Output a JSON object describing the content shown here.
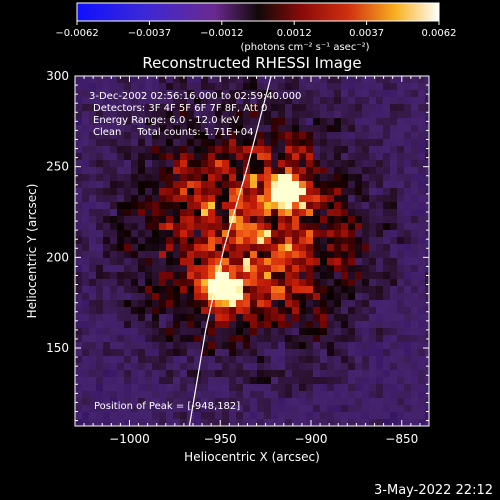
{
  "colorbar": {
    "ticks": [
      "−0.0062",
      "−0.0037",
      "−0.0012",
      "0.0012",
      "0.0037",
      "0.0062"
    ],
    "unit_label": "(photons cm⁻² s⁻¹ asec⁻²)",
    "range": [
      -0.0062,
      0.0062
    ]
  },
  "chart_data": {
    "type": "heatmap",
    "title": "Reconstructed RHESSI Image",
    "xlabel": "Heliocentric X (arcsec)",
    "ylabel": "Heliocentric Y (arcsec)",
    "xlim": [
      -1030,
      -835
    ],
    "ylim": [
      107,
      300
    ],
    "x_ticks": [
      -1000,
      -950,
      -900,
      -850
    ],
    "y_ticks": [
      150,
      200,
      250,
      300
    ],
    "x_tick_labels": [
      "−1000",
      "−950",
      "−900",
      "−850"
    ],
    "y_tick_labels": [
      "150",
      "200",
      "250",
      "300"
    ],
    "colormap": "purple-black-red-yellow-white (IDL rainbow-like)",
    "sources": [
      {
        "x": -948,
        "y": 182,
        "intensity": 0.0062
      },
      {
        "x": -912,
        "y": 236,
        "intensity": 0.005
      }
    ],
    "limb_curve": [
      [
        -967,
        107
      ],
      [
        -958,
        160
      ],
      [
        -948,
        205
      ],
      [
        -935,
        250
      ],
      [
        -922,
        300
      ]
    ],
    "annotations": {
      "time_range": "3-Dec-2002 02:56:16.000 to 02:59:40.000",
      "detectors": "Detectors: 3F 4F 5F 6F 7F 8F, Att 0",
      "energy_range": "Energy Range: 6.0 - 12.0 keV",
      "clean_counts": "Clean     Total counts: 1.71E+04",
      "peak": "Position of Peak = [-948,182]"
    }
  },
  "footer": {
    "timestamp": "3-May-2022 22:12"
  }
}
